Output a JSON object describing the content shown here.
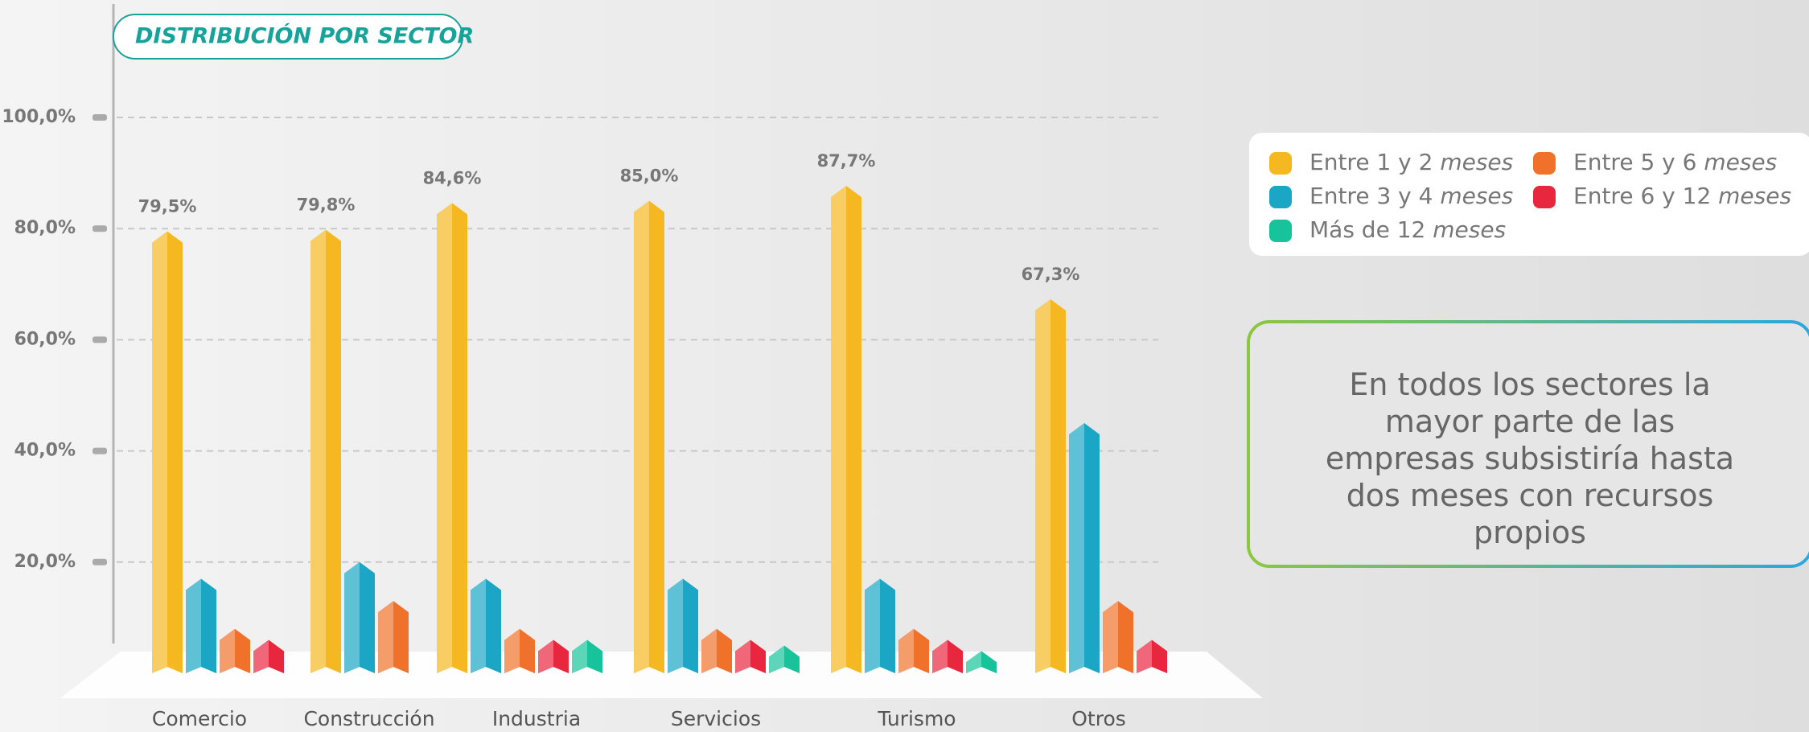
{
  "chart_data": {
    "type": "bar",
    "title": "DISTRIBUCIÓN POR SECTOR",
    "annotation": "En todos los sectores la mayor parte de las empresas subsistiría hasta dos meses con recursos propios",
    "categories": [
      "Comercio",
      "Construcción",
      "Industria",
      "Servicios",
      "Turismo",
      "Otros"
    ],
    "series": [
      {
        "name": "Entre 1 y 2 meses",
        "color": "#f5b820",
        "values": [
          79.5,
          79.8,
          84.6,
          85.0,
          87.7,
          67.3
        ],
        "value_labels": [
          "79,5%",
          "79,8%",
          "84,6%",
          "85,0%",
          "87,7%",
          "67,3%"
        ]
      },
      {
        "name": "Entre 3 y 4 meses",
        "color": "#1aa6c4",
        "values": [
          17,
          20,
          17,
          17,
          17,
          45
        ]
      },
      {
        "name": "Entre 5 y 6 meses",
        "color": "#f0712a",
        "values": [
          8,
          13,
          8,
          8,
          8,
          13
        ]
      },
      {
        "name": "Entre 6 y 12 meses",
        "color": "#e8263e",
        "values": [
          6,
          null,
          6,
          6,
          6,
          6
        ]
      },
      {
        "name": "Más de 12 meses",
        "color": "#17c39a",
        "values": [
          null,
          null,
          6,
          5,
          4,
          null
        ]
      }
    ],
    "ylim": [
      0,
      100
    ],
    "yticks": [
      {
        "value": 20,
        "label": "20,0%"
      },
      {
        "value": 40,
        "label": "40,0%"
      },
      {
        "value": 60,
        "label": "60,0%"
      },
      {
        "value": 80,
        "label": "80,0%"
      },
      {
        "value": 100,
        "label": "100,0%"
      }
    ],
    "grid": true
  }
}
